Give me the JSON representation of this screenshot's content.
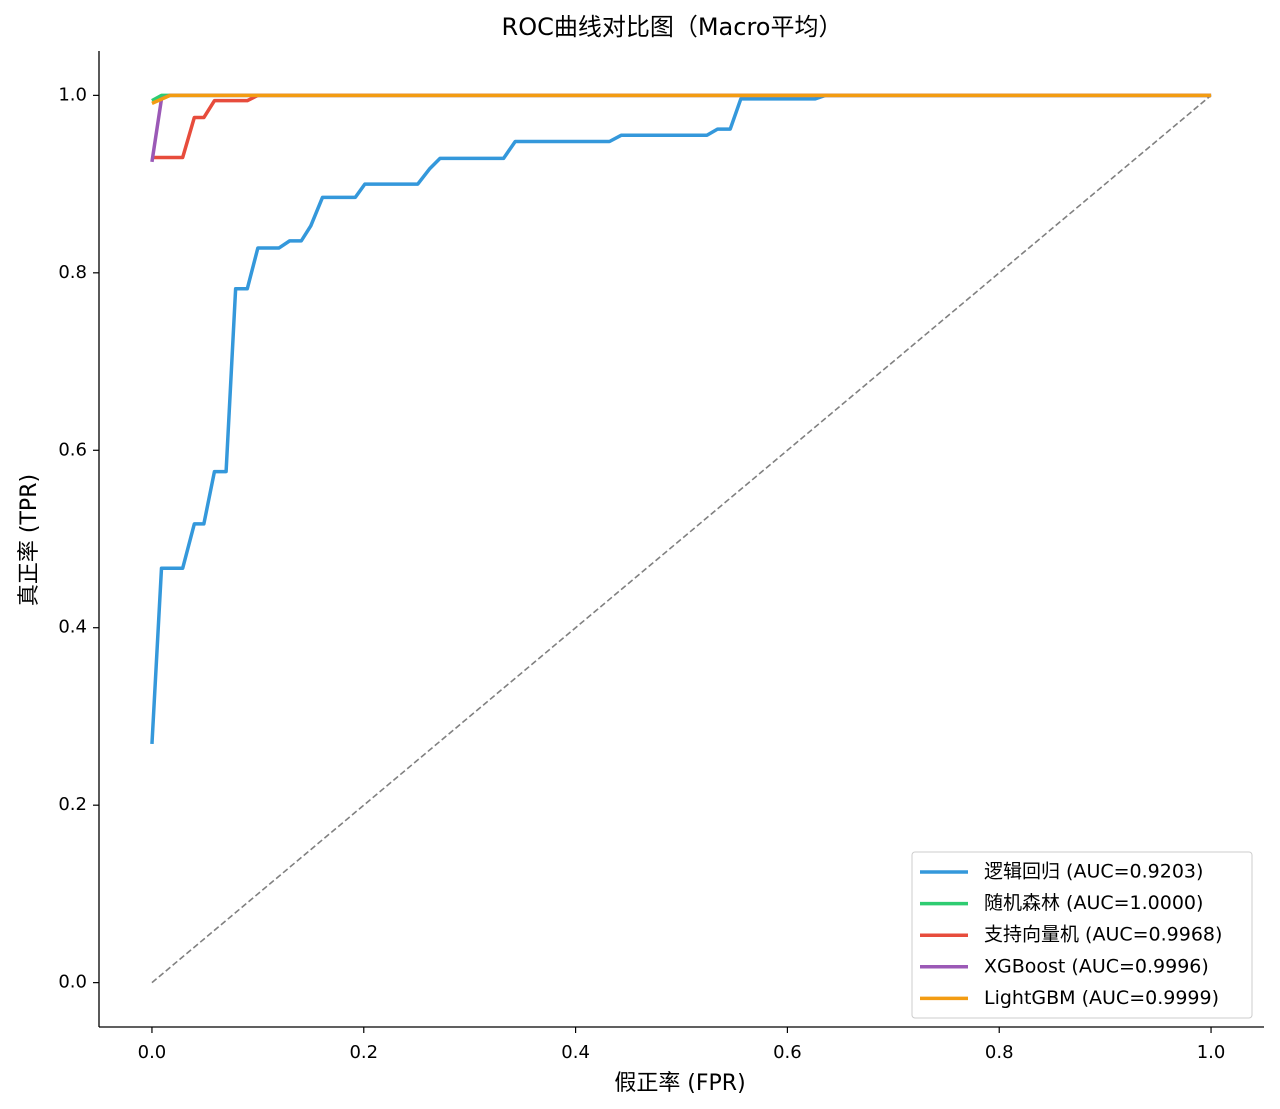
{
  "chart_data": {
    "type": "line",
    "title": "ROC曲线对比图（Macro平均）",
    "x_label": "假正率 (FPR)",
    "y_label": "真正率 (TPR)",
    "xlim": [
      -0.05,
      1.05
    ],
    "ylim": [
      -0.05,
      1.05
    ],
    "xticks": [
      {
        "value": 0,
        "label": "0.0"
      },
      0.2,
      0.4,
      0.6,
      0.8,
      {
        "value": 1,
        "label": "1.0"
      }
    ],
    "yticks": [
      {
        "value": 0,
        "label": "0.0"
      },
      0.2,
      0.4,
      0.6,
      0.8,
      {
        "value": 1,
        "label": "1.0"
      }
    ],
    "grid": false,
    "legend": "lower right",
    "reference_line": {
      "color": "#808080",
      "x": [
        0,
        1
      ],
      "values": [
        0,
        1
      ]
    },
    "series": [
      {
        "name": "逻辑回归 (AUC=0.9203)",
        "color": "#3498db",
        "x": [
          0,
          0.009,
          0.029,
          0.04,
          0.049,
          0.059,
          0.07,
          0.079,
          0.09,
          0.1,
          0.12,
          0.13,
          0.141,
          0.15,
          0.161,
          0.192,
          0.201,
          0.251,
          0.262,
          0.272,
          0.332,
          0.343,
          0.432,
          0.443,
          0.524,
          0.534,
          0.546,
          0.556,
          0.626,
          0.636,
          1.0
        ],
        "values": [
          0.269,
          0.467,
          0.467,
          0.517,
          0.517,
          0.576,
          0.576,
          0.782,
          0.782,
          0.828,
          0.828,
          0.836,
          0.836,
          0.853,
          0.885,
          0.885,
          0.9,
          0.9,
          0.917,
          0.929,
          0.929,
          0.948,
          0.948,
          0.955,
          0.955,
          0.962,
          0.962,
          0.996,
          0.996,
          1.0,
          1.0
        ]
      },
      {
        "name": "随机森林 (AUC=1.0000)",
        "color": "#2ecc71",
        "x": [
          0,
          0.009,
          1.0
        ],
        "values": [
          0.994,
          1.0,
          1.0
        ]
      },
      {
        "name": "支持向量机 (AUC=0.9968)",
        "color": "#e74c3c",
        "x": [
          0,
          0.029,
          0.04,
          0.049,
          0.059,
          0.09,
          0.1,
          1.0
        ],
        "values": [
          0.93,
          0.93,
          0.975,
          0.975,
          0.994,
          0.994,
          1.0,
          1.0
        ]
      },
      {
        "name": "XGBoost (AUC=0.9996)",
        "color": "#9b59b6",
        "x": [
          0,
          0.009,
          0.017,
          1.0
        ],
        "values": [
          0.925,
          0.996,
          1.0,
          1.0
        ]
      },
      {
        "name": "LightGBM (AUC=0.9999)",
        "color": "#f39c12",
        "x": [
          0,
          0.017,
          1.0
        ],
        "values": [
          0.991,
          1.0,
          1.0
        ]
      }
    ]
  }
}
